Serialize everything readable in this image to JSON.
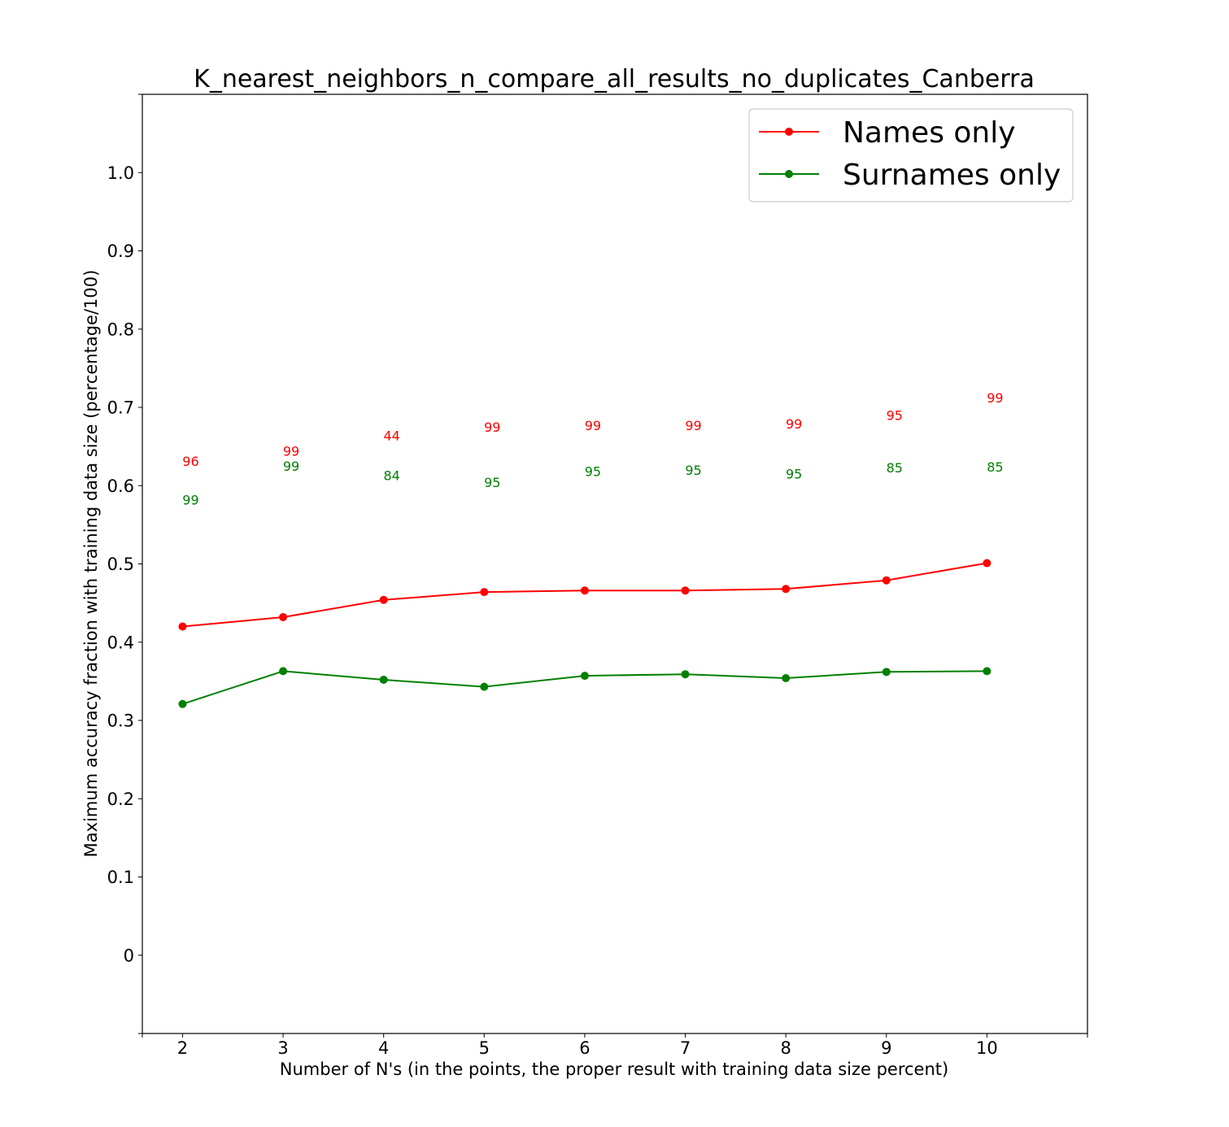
{
  "chart_data": {
    "type": "line",
    "title": "K_nearest_neighbors_n_compare_all_results_no_duplicates_Canberra",
    "xlabel": "Number of N's (in the points, the proper result with training data size percent)",
    "ylabel": "Maximum accuracy fraction with training data size (percentage/100)",
    "x": [
      2,
      3,
      4,
      5,
      6,
      7,
      8,
      9,
      10
    ],
    "xlim": [
      1.6,
      11.0
    ],
    "ylim": [
      -0.1,
      1.1
    ],
    "yticks": [
      0,
      0.1,
      0.2,
      0.3,
      0.4,
      0.5,
      0.6,
      0.7,
      0.8,
      0.9,
      1.0
    ],
    "ytick_labels": [
      "0",
      "0.1",
      "0.2",
      "0.3",
      "0.4",
      "0.5",
      "0.6",
      "0.7",
      "0.8",
      "0.9",
      "1.0"
    ],
    "grid": false,
    "legend_position": "top-right",
    "series": [
      {
        "name": "Names only",
        "color": "#ff0000",
        "values": [
          0.42,
          0.432,
          0.454,
          0.464,
          0.466,
          0.466,
          0.468,
          0.479,
          0.501
        ],
        "point_labels": [
          "96",
          "99",
          "44",
          "99",
          "99",
          "99",
          "99",
          "95",
          "99"
        ],
        "label_y": [
          0.625,
          0.638,
          0.658,
          0.669,
          0.671,
          0.671,
          0.673,
          0.684,
          0.706
        ]
      },
      {
        "name": "Surnames only",
        "color": "#008000",
        "values": [
          0.321,
          0.363,
          0.352,
          0.343,
          0.357,
          0.359,
          0.354,
          0.362,
          0.363
        ],
        "point_labels": [
          "99",
          "99",
          "84",
          "95",
          "95",
          "95",
          "95",
          "85",
          "85"
        ],
        "label_y": [
          0.576,
          0.619,
          0.607,
          0.598,
          0.612,
          0.614,
          0.609,
          0.617,
          0.618
        ]
      }
    ]
  }
}
